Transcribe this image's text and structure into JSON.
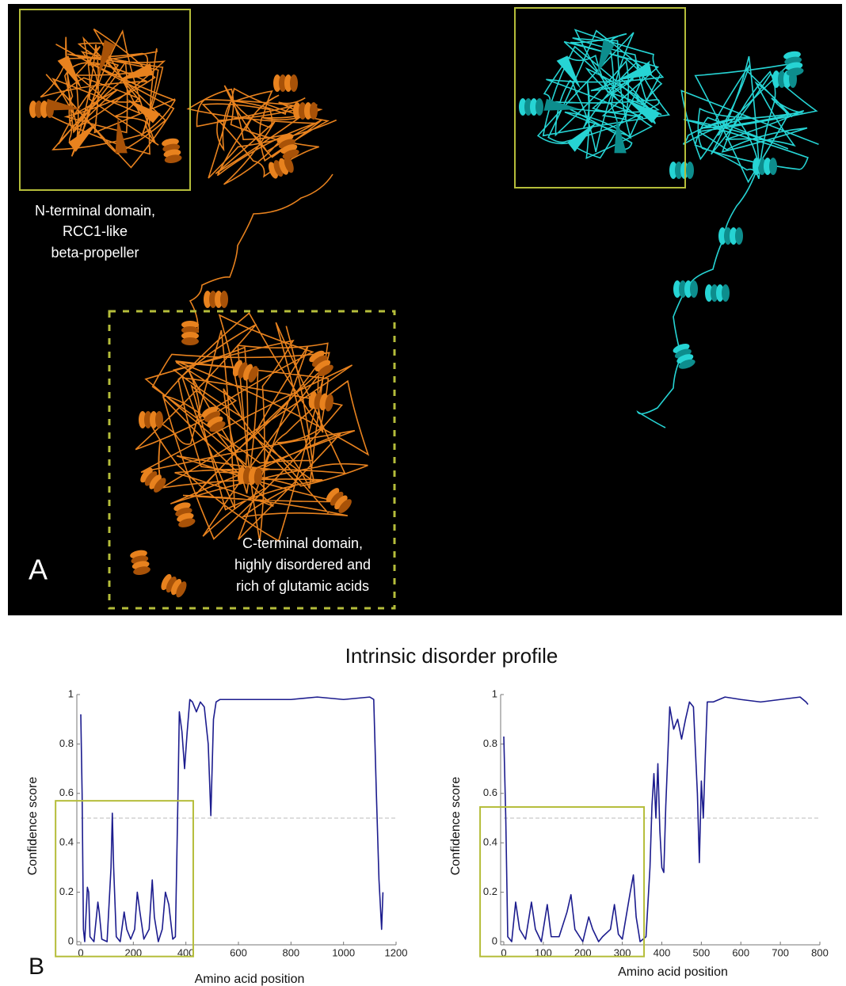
{
  "panel_a": {
    "label": "A",
    "n_terminal_label": [
      "N-terminal domain,",
      "RCC1-like",
      "beta-propeller"
    ],
    "c_terminal_label": [
      "C-terminal domain,",
      "highly disordered and",
      "rich of glutamic acids"
    ]
  },
  "panel_b": {
    "label": "B",
    "title": "Intrinsic disorder profile"
  },
  "chart_data": [
    {
      "type": "line",
      "color": "#1c1c8e",
      "x_label": "Amino acid position",
      "y_label": "Confidence score",
      "x": [
        0,
        5,
        10,
        15,
        25,
        30,
        35,
        50,
        65,
        70,
        80,
        100,
        115,
        120,
        125,
        135,
        150,
        165,
        175,
        190,
        205,
        215,
        225,
        240,
        260,
        272,
        280,
        295,
        310,
        322,
        335,
        350,
        360,
        370,
        375,
        385,
        395,
        405,
        415,
        425,
        440,
        455,
        470,
        485,
        495,
        505,
        515,
        530,
        600,
        700,
        800,
        900,
        1000,
        1100,
        1115,
        1125,
        1135,
        1145,
        1150
      ],
      "values": [
        0.92,
        0.6,
        0.05,
        0.0,
        0.22,
        0.2,
        0.02,
        0.0,
        0.16,
        0.12,
        0.01,
        0.0,
        0.3,
        0.52,
        0.3,
        0.02,
        0.0,
        0.12,
        0.05,
        0.01,
        0.05,
        0.2,
        0.12,
        0.01,
        0.05,
        0.25,
        0.1,
        0.0,
        0.05,
        0.2,
        0.15,
        0.01,
        0.02,
        0.6,
        0.93,
        0.85,
        0.7,
        0.85,
        0.98,
        0.97,
        0.93,
        0.97,
        0.95,
        0.8,
        0.51,
        0.9,
        0.97,
        0.98,
        0.98,
        0.98,
        0.98,
        0.99,
        0.98,
        0.99,
        0.98,
        0.6,
        0.25,
        0.05,
        0.2
      ],
      "xlim": [
        0,
        1200
      ],
      "ylim": [
        0,
        1
      ],
      "xticks": [
        0,
        200,
        400,
        600,
        800,
        1000,
        1200
      ],
      "yticks": [
        0,
        0.2,
        0.4,
        0.6,
        0.8,
        1
      ],
      "threshold": 0.5,
      "highlight": {
        "xlim": [
          -96,
          428
        ],
        "ylim": [
          -0.06,
          0.57
        ],
        "color": "#b5bd3a"
      }
    },
    {
      "type": "line",
      "color": "#1c1c8e",
      "x_label": "Amino acid position",
      "y_label": "Confidence score",
      "x": [
        0,
        5,
        10,
        20,
        30,
        40,
        55,
        70,
        80,
        95,
        110,
        120,
        140,
        160,
        170,
        180,
        200,
        215,
        225,
        240,
        250,
        270,
        280,
        290,
        300,
        320,
        328,
        335,
        345,
        360,
        370,
        375,
        380,
        385,
        390,
        395,
        400,
        405,
        410,
        420,
        430,
        440,
        450,
        460,
        470,
        480,
        490,
        495,
        500,
        505,
        510,
        515,
        530,
        560,
        600,
        650,
        700,
        750,
        765,
        770
      ],
      "values": [
        0.83,
        0.5,
        0.02,
        0.0,
        0.16,
        0.05,
        0.01,
        0.16,
        0.05,
        0.0,
        0.15,
        0.02,
        0.02,
        0.12,
        0.19,
        0.05,
        0.0,
        0.1,
        0.05,
        0.0,
        0.02,
        0.05,
        0.15,
        0.03,
        0.01,
        0.2,
        0.27,
        0.1,
        0.0,
        0.02,
        0.3,
        0.55,
        0.68,
        0.5,
        0.72,
        0.45,
        0.3,
        0.28,
        0.55,
        0.95,
        0.86,
        0.9,
        0.82,
        0.9,
        0.97,
        0.95,
        0.6,
        0.32,
        0.65,
        0.5,
        0.75,
        0.97,
        0.97,
        0.99,
        0.98,
        0.97,
        0.98,
        0.99,
        0.97,
        0.96
      ],
      "xlim": [
        0,
        800
      ],
      "ylim": [
        0,
        1
      ],
      "xticks": [
        0,
        100,
        200,
        300,
        400,
        500,
        600,
        700,
        800
      ],
      "yticks": [
        0,
        0.2,
        0.4,
        0.6,
        0.8,
        1
      ],
      "threshold": 0.5,
      "highlight": {
        "xlim": [
          -60,
          355
        ],
        "ylim": [
          -0.06,
          0.545
        ],
        "color": "#b5bd3a"
      }
    }
  ]
}
